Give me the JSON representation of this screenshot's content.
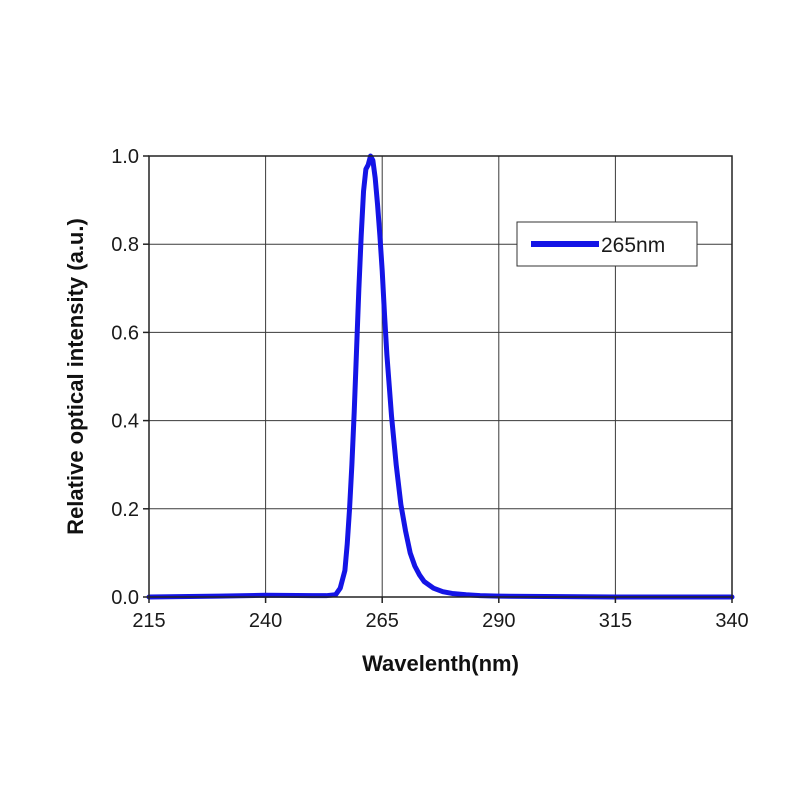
{
  "chart_data": {
    "type": "line",
    "title": "",
    "xlabel": "Wavelenth(nm)",
    "ylabel": "Relative optical intensity (a.u.)",
    "xlim": [
      215,
      340
    ],
    "ylim": [
      0.0,
      1.0
    ],
    "xticks": [
      215,
      240,
      265,
      290,
      315,
      340
    ],
    "xtick_labels": [
      "215",
      "240",
      "265",
      "290",
      "315",
      "340"
    ],
    "yticks": [
      0.0,
      0.2,
      0.4,
      0.6,
      0.8,
      1.0
    ],
    "ytick_labels": [
      "0.0",
      "0.2",
      "0.4",
      "0.6",
      "0.8",
      "1.0"
    ],
    "grid": true,
    "legend_position": "top-right",
    "series": [
      {
        "name": "265nm",
        "color": "#1414e6",
        "x": [
          215,
          230,
          240,
          250,
          253,
          255,
          256,
          257,
          257.5,
          258,
          258.5,
          259,
          259.5,
          260,
          260.5,
          261,
          261.5,
          262,
          262.5,
          263,
          263.5,
          264,
          264.5,
          265,
          265.5,
          266,
          266.5,
          267,
          268,
          269,
          270,
          271,
          272,
          273,
          274,
          276,
          278,
          280,
          283,
          286,
          290,
          300,
          315,
          340
        ],
        "y": [
          0.0,
          0.002,
          0.004,
          0.003,
          0.003,
          0.005,
          0.02,
          0.06,
          0.12,
          0.2,
          0.3,
          0.42,
          0.56,
          0.7,
          0.82,
          0.92,
          0.97,
          0.98,
          1.0,
          0.99,
          0.95,
          0.89,
          0.82,
          0.74,
          0.64,
          0.55,
          0.48,
          0.41,
          0.3,
          0.21,
          0.15,
          0.1,
          0.07,
          0.05,
          0.035,
          0.02,
          0.012,
          0.008,
          0.005,
          0.003,
          0.002,
          0.001,
          0.0,
          0.0
        ]
      }
    ]
  }
}
